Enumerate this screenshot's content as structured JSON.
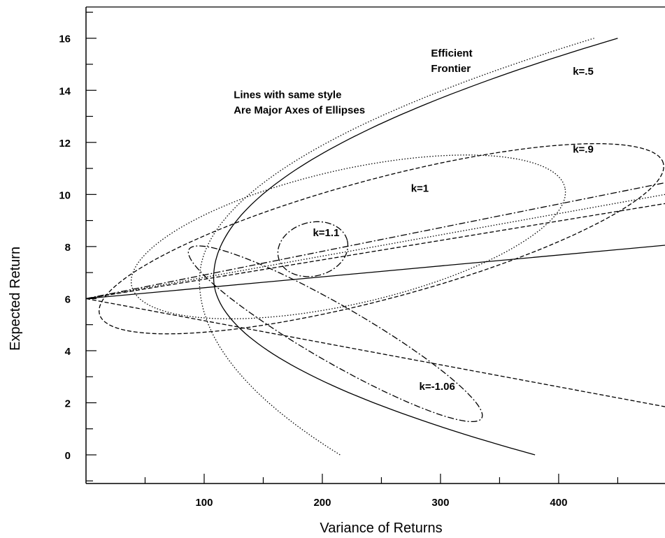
{
  "chart_data": {
    "type": "line",
    "xlabel": "Variance of Returns",
    "ylabel": "Expected Return",
    "xlim": [
      0,
      490
    ],
    "ylim": [
      -1.1,
      17.2
    ],
    "grid": false,
    "x_ticks": [
      100,
      200,
      300,
      400
    ],
    "y_ticks": [
      0,
      2,
      4,
      6,
      8,
      10,
      12,
      14,
      16
    ],
    "annotations": [
      {
        "lines": [
          "Lines with same style",
          "Are Major Axes of Ellipses"
        ],
        "x": 125,
        "y": 13.7
      },
      {
        "lines": [
          "Efficient",
          "Frontier"
        ],
        "x": 292,
        "y": 15.3
      },
      {
        "lines": [
          "k=.5"
        ],
        "x": 412,
        "y": 14.6
      },
      {
        "lines": [
          "k=.9"
        ],
        "x": 412,
        "y": 11.6
      },
      {
        "lines": [
          "k=1"
        ],
        "x": 275,
        "y": 10.1
      },
      {
        "lines": [
          "k=1.1"
        ],
        "x": 192,
        "y": 8.4
      },
      {
        "lines": [
          "k=-1.06"
        ],
        "x": 282,
        "y": 2.5
      }
    ],
    "series": [
      {
        "style": "solid",
        "kind": "parabola",
        "min_variance": 108,
        "min_return": 6.8,
        "points": [
          [
            450,
            16.0
          ],
          [
            108,
            6.8
          ],
          [
            380,
            0.0
          ]
        ]
      },
      {
        "style": "dotted",
        "kind": "parabola",
        "min_variance": 96,
        "min_return": 6.7,
        "points": [
          [
            430,
            16.0
          ],
          [
            96,
            6.7
          ],
          [
            215,
            0.0
          ]
        ]
      },
      {
        "style": "solid",
        "kind": "line",
        "points": [
          [
            0,
            6.0
          ],
          [
            490,
            8.05
          ]
        ]
      },
      {
        "style": "dash-dot",
        "kind": "line",
        "points": [
          [
            0,
            6.0
          ],
          [
            490,
            10.45
          ]
        ]
      },
      {
        "style": "dotted",
        "kind": "line",
        "points": [
          [
            0,
            6.0
          ],
          [
            490,
            10.0
          ]
        ]
      },
      {
        "style": "dashed",
        "kind": "line",
        "points": [
          [
            0,
            6.0
          ],
          [
            490,
            9.65
          ]
        ]
      },
      {
        "style": "dashed",
        "kind": "line",
        "points": [
          [
            0,
            6.0
          ],
          [
            490,
            1.85
          ]
        ]
      },
      {
        "style": "dashed",
        "kind": "ellipse",
        "cx": 250,
        "cy": 8.3,
        "rx": 247,
        "ry": 2.3,
        "angle_deg": 15.0
      },
      {
        "style": "dotted",
        "kind": "ellipse",
        "cx": 222,
        "cy": 8.37,
        "rx": 188,
        "ry": 2.58,
        "angle_deg": 12.8
      },
      {
        "style": "dash-dot",
        "kind": "ellipse",
        "cx": 192,
        "cy": 7.9,
        "rx": 30,
        "ry": 1.03,
        "angle_deg": 14.5
      },
      {
        "style": "dash-dot",
        "kind": "ellipse",
        "cx": 211,
        "cy": 4.65,
        "rx": 143,
        "ry": 1.08,
        "angle_deg": -30.0
      }
    ]
  }
}
